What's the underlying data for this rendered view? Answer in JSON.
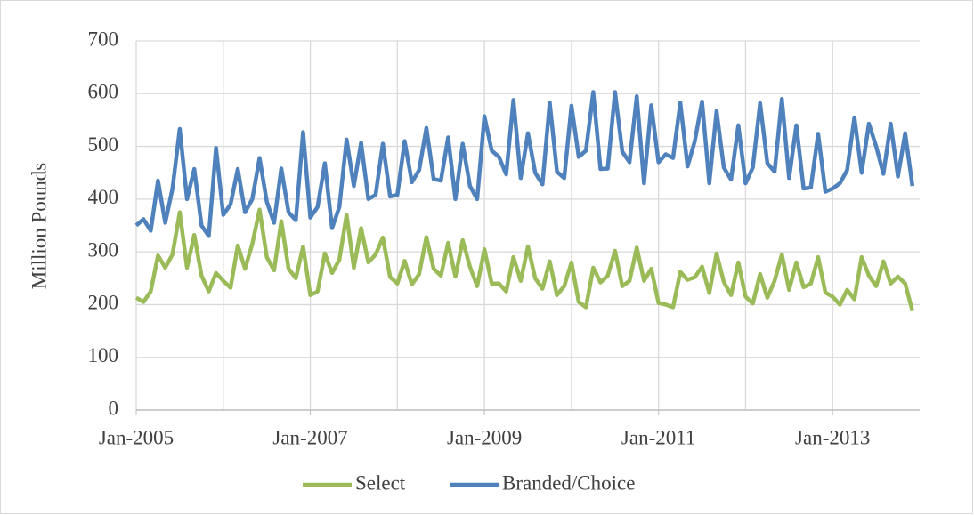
{
  "chart_data": {
    "type": "line",
    "y_label": "Million Pounds",
    "x": [
      "2005-01",
      "2005-02",
      "2005-03",
      "2005-04",
      "2005-05",
      "2005-06",
      "2005-07",
      "2005-08",
      "2005-09",
      "2005-10",
      "2005-11",
      "2005-12",
      "2006-01",
      "2006-02",
      "2006-03",
      "2006-04",
      "2006-05",
      "2006-06",
      "2006-07",
      "2006-08",
      "2006-09",
      "2006-10",
      "2006-11",
      "2006-12",
      "2007-01",
      "2007-02",
      "2007-03",
      "2007-04",
      "2007-05",
      "2007-06",
      "2007-07",
      "2007-08",
      "2007-09",
      "2007-10",
      "2007-11",
      "2007-12",
      "2008-01",
      "2008-02",
      "2008-03",
      "2008-04",
      "2008-05",
      "2008-06",
      "2008-07",
      "2008-08",
      "2008-09",
      "2008-10",
      "2008-11",
      "2008-12",
      "2009-01",
      "2009-02",
      "2009-03",
      "2009-04",
      "2009-05",
      "2009-06",
      "2009-07",
      "2009-08",
      "2009-09",
      "2009-10",
      "2009-11",
      "2009-12",
      "2010-01",
      "2010-02",
      "2010-03",
      "2010-04",
      "2010-05",
      "2010-06",
      "2010-07",
      "2010-08",
      "2010-09",
      "2010-10",
      "2010-11",
      "2010-12",
      "2011-01",
      "2011-02",
      "2011-03",
      "2011-04",
      "2011-05",
      "2011-06",
      "2011-07",
      "2011-08",
      "2011-09",
      "2011-10",
      "2011-11",
      "2011-12",
      "2012-01",
      "2012-02",
      "2012-03",
      "2012-04",
      "2012-05",
      "2012-06",
      "2012-07",
      "2012-08",
      "2012-09",
      "2012-10",
      "2012-11",
      "2012-12",
      "2013-01",
      "2013-02",
      "2013-03",
      "2013-04",
      "2013-05",
      "2013-06",
      "2013-07",
      "2013-08",
      "2013-09",
      "2013-10",
      "2013-11",
      "2013-12"
    ],
    "series": [
      {
        "name": "Select",
        "color": "#9bbb59",
        "values": [
          213,
          205,
          225,
          293,
          270,
          295,
          375,
          270,
          332,
          255,
          225,
          260,
          245,
          232,
          312,
          268,
          315,
          380,
          290,
          265,
          358,
          268,
          250,
          310,
          218,
          225,
          297,
          260,
          285,
          370,
          270,
          345,
          280,
          295,
          327,
          252,
          240,
          283,
          238,
          258,
          328,
          268,
          255,
          317,
          253,
          322,
          272,
          235,
          305,
          240,
          240,
          225,
          290,
          245,
          310,
          250,
          230,
          282,
          218,
          235,
          280,
          205,
          195,
          270,
          242,
          255,
          302,
          235,
          245,
          308,
          245,
          268,
          203,
          200,
          195,
          262,
          247,
          252,
          272,
          222,
          297,
          243,
          218,
          280,
          215,
          202,
          258,
          213,
          245,
          295,
          228,
          280,
          233,
          240,
          290,
          223,
          215,
          200,
          228,
          210,
          290,
          255,
          235,
          282,
          240,
          253,
          240,
          188
        ]
      },
      {
        "name": "Branded/Choice",
        "color": "#4f81bd",
        "values": [
          350,
          362,
          340,
          435,
          355,
          420,
          533,
          400,
          457,
          350,
          330,
          497,
          370,
          390,
          457,
          375,
          400,
          478,
          395,
          355,
          458,
          375,
          360,
          527,
          365,
          385,
          468,
          345,
          385,
          513,
          425,
          507,
          400,
          408,
          505,
          405,
          408,
          510,
          432,
          455,
          535,
          438,
          435,
          517,
          400,
          505,
          425,
          400,
          557,
          492,
          480,
          447,
          588,
          440,
          525,
          450,
          428,
          583,
          452,
          440,
          577,
          480,
          492,
          603,
          457,
          458,
          603,
          490,
          470,
          595,
          430,
          578,
          470,
          485,
          478,
          583,
          462,
          510,
          585,
          430,
          567,
          460,
          437,
          540,
          430,
          460,
          582,
          468,
          452,
          590,
          440,
          540,
          420,
          422,
          524,
          414,
          420,
          430,
          455,
          555,
          450,
          543,
          500,
          448,
          543,
          443,
          525,
          425
        ]
      }
    ],
    "xlim": [
      "2005-01",
      "2014-01"
    ],
    "xticks": [
      {
        "value": "2005-01",
        "label": "Jan-2005"
      },
      {
        "value": "2007-01",
        "label": "Jan-2007"
      },
      {
        "value": "2009-01",
        "label": "Jan-2009"
      },
      {
        "value": "2011-01",
        "label": "Jan-2011"
      },
      {
        "value": "2013-01",
        "label": "Jan-2013"
      }
    ],
    "ylim": [
      0,
      700
    ],
    "yticks": [
      0,
      100,
      200,
      300,
      400,
      500,
      600,
      700
    ],
    "grid": true,
    "legend": "bottom"
  }
}
